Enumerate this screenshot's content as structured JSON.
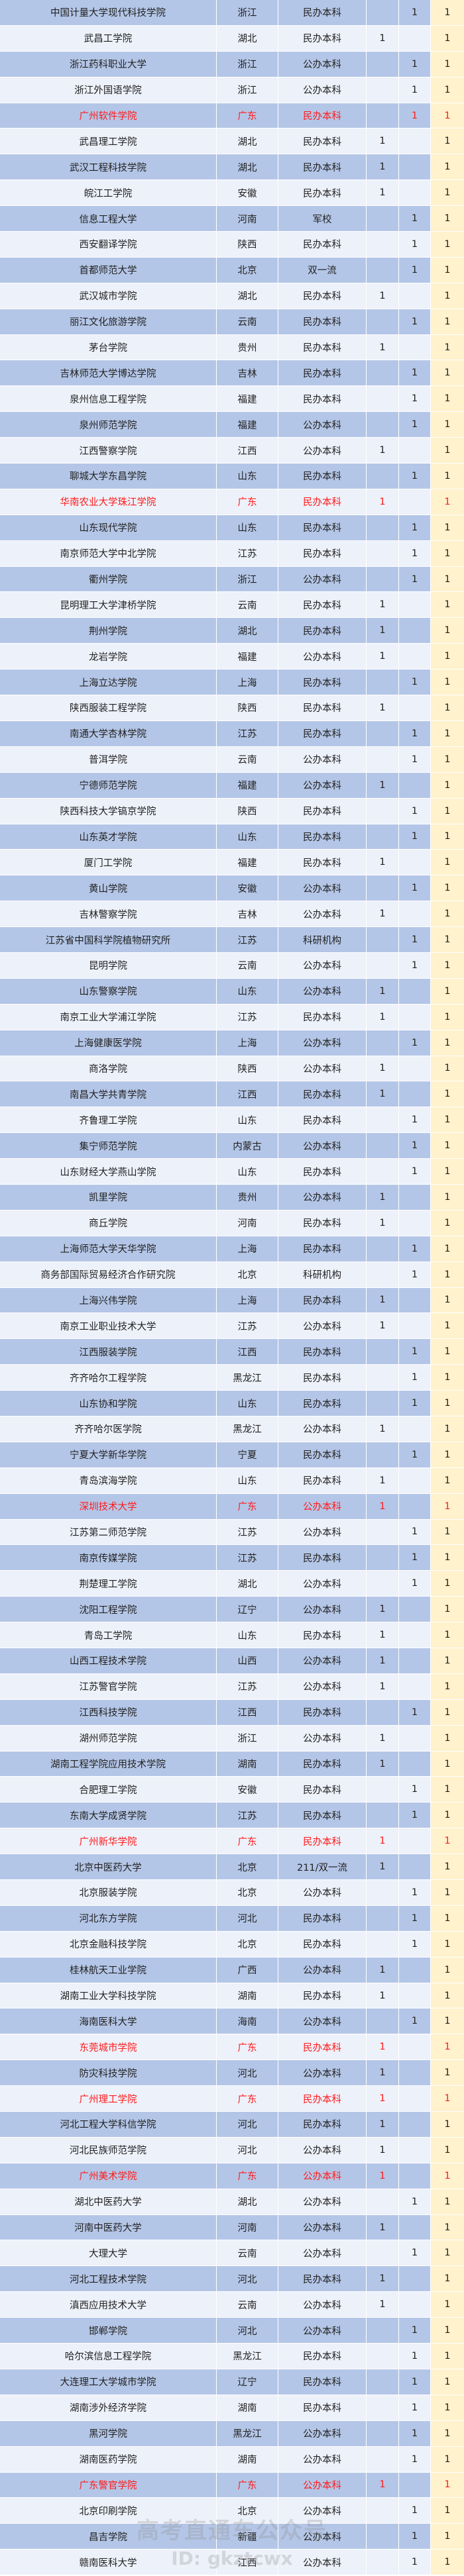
{
  "highlight_province": "广东",
  "colors": {
    "row_dark": "#b4c6e7",
    "row_light": "#edf1fa",
    "total_column": "#fff2cc",
    "highlight_text": "#ff1a1a"
  },
  "watermark": {
    "line1": "高考直通车公众号",
    "line2": "ID: gkztcwx"
  },
  "rows": [
    [
      "中国计量大学现代科技学院",
      "浙江",
      "民办本科",
      "",
      "1",
      "1"
    ],
    [
      "武昌工学院",
      "湖北",
      "民办本科",
      "1",
      "",
      "1"
    ],
    [
      "浙江药科职业大学",
      "浙江",
      "公办本科",
      "",
      "1",
      "1"
    ],
    [
      "浙江外国语学院",
      "浙江",
      "公办本科",
      "",
      "1",
      "1"
    ],
    [
      "广州软件学院",
      "广东",
      "民办本科",
      "",
      "1",
      "1"
    ],
    [
      "武昌理工学院",
      "湖北",
      "民办本科",
      "1",
      "",
      "1"
    ],
    [
      "武汉工程科技学院",
      "湖北",
      "民办本科",
      "1",
      "",
      "1"
    ],
    [
      "皖江工学院",
      "安徽",
      "民办本科",
      "1",
      "",
      "1"
    ],
    [
      "信息工程大学",
      "河南",
      "军校",
      "",
      "1",
      "1"
    ],
    [
      "西安翻译学院",
      "陕西",
      "民办本科",
      "",
      "1",
      "1"
    ],
    [
      "首都师范大学",
      "北京",
      "双一流",
      "",
      "1",
      "1"
    ],
    [
      "武汉城市学院",
      "湖北",
      "民办本科",
      "1",
      "",
      "1"
    ],
    [
      "丽江文化旅游学院",
      "云南",
      "民办本科",
      "",
      "1",
      "1"
    ],
    [
      "茅台学院",
      "贵州",
      "民办本科",
      "1",
      "",
      "1"
    ],
    [
      "吉林师范大学博达学院",
      "吉林",
      "民办本科",
      "",
      "1",
      "1"
    ],
    [
      "泉州信息工程学院",
      "福建",
      "民办本科",
      "",
      "1",
      "1"
    ],
    [
      "泉州师范学院",
      "福建",
      "公办本科",
      "",
      "1",
      "1"
    ],
    [
      "江西警察学院",
      "江西",
      "公办本科",
      "1",
      "",
      "1"
    ],
    [
      "聊城大学东昌学院",
      "山东",
      "民办本科",
      "",
      "1",
      "1"
    ],
    [
      "华南农业大学珠江学院",
      "广东",
      "民办本科",
      "1",
      "",
      "1"
    ],
    [
      "山东现代学院",
      "山东",
      "民办本科",
      "",
      "1",
      "1"
    ],
    [
      "南京师范大学中北学院",
      "江苏",
      "民办本科",
      "",
      "1",
      "1"
    ],
    [
      "衢州学院",
      "浙江",
      "公办本科",
      "",
      "1",
      "1"
    ],
    [
      "昆明理工大学津桥学院",
      "云南",
      "民办本科",
      "1",
      "",
      "1"
    ],
    [
      "荆州学院",
      "湖北",
      "民办本科",
      "1",
      "",
      "1"
    ],
    [
      "龙岩学院",
      "福建",
      "公办本科",
      "1",
      "",
      "1"
    ],
    [
      "上海立达学院",
      "上海",
      "民办本科",
      "",
      "1",
      "1"
    ],
    [
      "陕西服装工程学院",
      "陕西",
      "民办本科",
      "1",
      "",
      "1"
    ],
    [
      "南通大学杏林学院",
      "江苏",
      "民办本科",
      "",
      "1",
      "1"
    ],
    [
      "普洱学院",
      "云南",
      "公办本科",
      "",
      "1",
      "1"
    ],
    [
      "宁德师范学院",
      "福建",
      "公办本科",
      "1",
      "",
      "1"
    ],
    [
      "陕西科技大学镐京学院",
      "陕西",
      "民办本科",
      "",
      "1",
      "1"
    ],
    [
      "山东英才学院",
      "山东",
      "民办本科",
      "",
      "1",
      "1"
    ],
    [
      "厦门工学院",
      "福建",
      "民办本科",
      "1",
      "",
      "1"
    ],
    [
      "黄山学院",
      "安徽",
      "公办本科",
      "",
      "1",
      "1"
    ],
    [
      "吉林警察学院",
      "吉林",
      "公办本科",
      "1",
      "",
      "1"
    ],
    [
      "江苏省中国科学院植物研究所",
      "江苏",
      "科研机构",
      "",
      "1",
      "1"
    ],
    [
      "昆明学院",
      "云南",
      "公办本科",
      "",
      "1",
      "1"
    ],
    [
      "山东警察学院",
      "山东",
      "公办本科",
      "1",
      "",
      "1"
    ],
    [
      "南京工业大学浦江学院",
      "江苏",
      "民办本科",
      "1",
      "",
      "1"
    ],
    [
      "上海健康医学院",
      "上海",
      "公办本科",
      "",
      "1",
      "1"
    ],
    [
      "商洛学院",
      "陕西",
      "公办本科",
      "1",
      "",
      "1"
    ],
    [
      "南昌大学共青学院",
      "江西",
      "民办本科",
      "1",
      "",
      "1"
    ],
    [
      "齐鲁理工学院",
      "山东",
      "民办本科",
      "",
      "1",
      "1"
    ],
    [
      "集宁师范学院",
      "内蒙古",
      "公办本科",
      "",
      "1",
      "1"
    ],
    [
      "山东财经大学燕山学院",
      "山东",
      "民办本科",
      "",
      "1",
      "1"
    ],
    [
      "凯里学院",
      "贵州",
      "公办本科",
      "1",
      "",
      "1"
    ],
    [
      "商丘学院",
      "河南",
      "民办本科",
      "1",
      "",
      "1"
    ],
    [
      "上海师范大学天华学院",
      "上海",
      "民办本科",
      "",
      "1",
      "1"
    ],
    [
      "商务部国际贸易经济合作研究院",
      "北京",
      "科研机构",
      "",
      "1",
      "1"
    ],
    [
      "上海兴伟学院",
      "上海",
      "民办本科",
      "1",
      "",
      "1"
    ],
    [
      "南京工业职业技术大学",
      "江苏",
      "公办本科",
      "1",
      "",
      "1"
    ],
    [
      "江西服装学院",
      "江西",
      "民办本科",
      "",
      "1",
      "1"
    ],
    [
      "齐齐哈尔工程学院",
      "黑龙江",
      "民办本科",
      "",
      "1",
      "1"
    ],
    [
      "山东协和学院",
      "山东",
      "民办本科",
      "",
      "1",
      "1"
    ],
    [
      "齐齐哈尔医学院",
      "黑龙江",
      "公办本科",
      "1",
      "",
      "1"
    ],
    [
      "宁夏大学新华学院",
      "宁夏",
      "民办本科",
      "",
      "1",
      "1"
    ],
    [
      "青岛滨海学院",
      "山东",
      "民办本科",
      "1",
      "",
      "1"
    ],
    [
      "深圳技术大学",
      "广东",
      "公办本科",
      "1",
      "",
      "1"
    ],
    [
      "江苏第二师范学院",
      "江苏",
      "公办本科",
      "",
      "1",
      "1"
    ],
    [
      "南京传媒学院",
      "江苏",
      "民办本科",
      "",
      "1",
      "1"
    ],
    [
      "荆楚理工学院",
      "湖北",
      "公办本科",
      "",
      "1",
      "1"
    ],
    [
      "沈阳工程学院",
      "辽宁",
      "公办本科",
      "1",
      "",
      "1"
    ],
    [
      "青岛工学院",
      "山东",
      "民办本科",
      "1",
      "",
      "1"
    ],
    [
      "山西工程技术学院",
      "山西",
      "公办本科",
      "1",
      "",
      "1"
    ],
    [
      "江苏警官学院",
      "江苏",
      "公办本科",
      "1",
      "",
      "1"
    ],
    [
      "江西科技学院",
      "江西",
      "民办本科",
      "",
      "1",
      "1"
    ],
    [
      "湖州师范学院",
      "浙江",
      "公办本科",
      "1",
      "",
      "1"
    ],
    [
      "湖南工程学院应用技术学院",
      "湖南",
      "民办本科",
      "1",
      "",
      "1"
    ],
    [
      "合肥理工学院",
      "安徽",
      "民办本科",
      "",
      "1",
      "1"
    ],
    [
      "东南大学成贤学院",
      "江苏",
      "民办本科",
      "",
      "1",
      "1"
    ],
    [
      "广州新华学院",
      "广东",
      "民办本科",
      "1",
      "",
      "1"
    ],
    [
      "北京中医药大学",
      "北京",
      "211/双一流",
      "1",
      "",
      "1"
    ],
    [
      "北京服装学院",
      "北京",
      "公办本科",
      "",
      "1",
      "1"
    ],
    [
      "河北东方学院",
      "河北",
      "民办本科",
      "",
      "1",
      "1"
    ],
    [
      "北京金融科技学院",
      "北京",
      "民办本科",
      "",
      "1",
      "1"
    ],
    [
      "桂林航天工业学院",
      "广西",
      "公办本科",
      "1",
      "",
      "1"
    ],
    [
      "湖南工业大学科技学院",
      "湖南",
      "民办本科",
      "1",
      "",
      "1"
    ],
    [
      "海南医科大学",
      "海南",
      "公办本科",
      "",
      "1",
      "1"
    ],
    [
      "东莞城市学院",
      "广东",
      "民办本科",
      "1",
      "",
      "1"
    ],
    [
      "防灾科技学院",
      "河北",
      "公办本科",
      "1",
      "",
      "1"
    ],
    [
      "广州理工学院",
      "广东",
      "民办本科",
      "1",
      "",
      "1"
    ],
    [
      "河北工程大学科信学院",
      "河北",
      "民办本科",
      "1",
      "",
      "1"
    ],
    [
      "河北民族师范学院",
      "河北",
      "公办本科",
      "1",
      "",
      "1"
    ],
    [
      "广州美术学院",
      "广东",
      "公办本科",
      "1",
      "",
      "1"
    ],
    [
      "湖北中医药大学",
      "湖北",
      "公办本科",
      "",
      "1",
      "1"
    ],
    [
      "河南中医药大学",
      "河南",
      "公办本科",
      "1",
      "",
      "1"
    ],
    [
      "大理大学",
      "云南",
      "公办本科",
      "",
      "1",
      "1"
    ],
    [
      "河北工程技术学院",
      "河北",
      "民办本科",
      "1",
      "",
      "1"
    ],
    [
      "滇西应用技术大学",
      "云南",
      "公办本科",
      "1",
      "",
      "1"
    ],
    [
      "邯郸学院",
      "河北",
      "公办本科",
      "",
      "1",
      "1"
    ],
    [
      "哈尔滨信息工程学院",
      "黑龙江",
      "民办本科",
      "",
      "1",
      "1"
    ],
    [
      "大连理工大学城市学院",
      "辽宁",
      "民办本科",
      "",
      "1",
      "1"
    ],
    [
      "湖南涉外经济学院",
      "湖南",
      "民办本科",
      "",
      "1",
      "1"
    ],
    [
      "黑河学院",
      "黑龙江",
      "公办本科",
      "",
      "1",
      "1"
    ],
    [
      "湖南医药学院",
      "湖南",
      "公办本科",
      "",
      "1",
      "1"
    ],
    [
      "广东警官学院",
      "广东",
      "公办本科",
      "1",
      "",
      "1"
    ],
    [
      "北京印刷学院",
      "北京",
      "公办本科",
      "",
      "1",
      "1"
    ],
    [
      "昌吉学院",
      "新疆",
      "公办本科",
      "",
      "1",
      "1"
    ],
    [
      "赣南医科大学",
      "江西",
      "公办本科",
      "",
      "1",
      "1"
    ]
  ]
}
